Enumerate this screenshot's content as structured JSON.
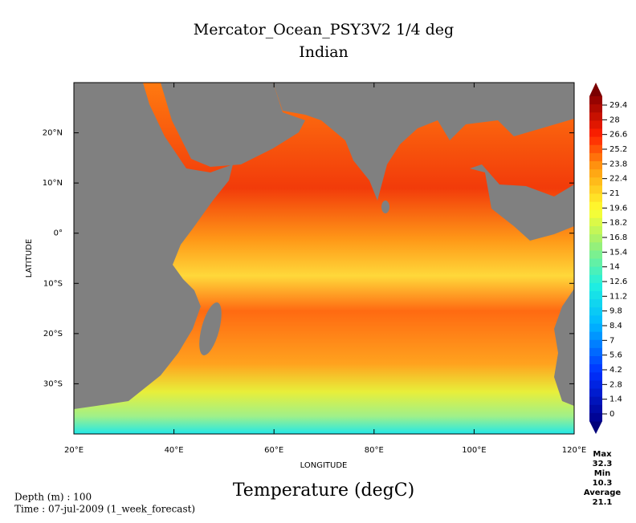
{
  "header": {
    "title": "Mercator_Ocean_PSY3V2 1/4 deg",
    "subtitle": "Indian"
  },
  "map": {
    "x_label": "LONGITUDE",
    "y_label": "LATITUDE",
    "xlim": [
      20,
      120
    ],
    "ylim": [
      -40,
      30
    ],
    "xticks": [
      {
        "value": 20,
        "label": "20°E"
      },
      {
        "value": 40,
        "label": "40°E"
      },
      {
        "value": 60,
        "label": "60°E"
      },
      {
        "value": 80,
        "label": "80°E"
      },
      {
        "value": 100,
        "label": "100°E"
      },
      {
        "value": 120,
        "label": "120°E"
      }
    ],
    "yticks": [
      {
        "value": 20,
        "label": "20°N"
      },
      {
        "value": 10,
        "label": "10°N"
      },
      {
        "value": 0,
        "label": "0°"
      },
      {
        "value": -10,
        "label": "10°S"
      },
      {
        "value": -20,
        "label": "20°S"
      },
      {
        "value": -30,
        "label": "30°S"
      }
    ]
  },
  "colorbar": {
    "ticks": [
      0,
      1.4,
      2.8,
      4.2,
      5.6,
      7,
      8.4,
      9.8,
      11.2,
      12.6,
      14,
      15.4,
      16.8,
      18.2,
      19.6,
      21,
      22.4,
      23.8,
      25.2,
      26.6,
      28,
      29.4
    ]
  },
  "stats": {
    "max_label": "Max",
    "max": 32.3,
    "min_label": "Min",
    "min": 10.3,
    "avg_label": "Average",
    "avg": 21.1
  },
  "footer": {
    "variable": "Temperature (degC)",
    "depth": "Depth (m) : 100",
    "time": "Time : 07-jul-2009 (1_week_forecast)"
  }
}
